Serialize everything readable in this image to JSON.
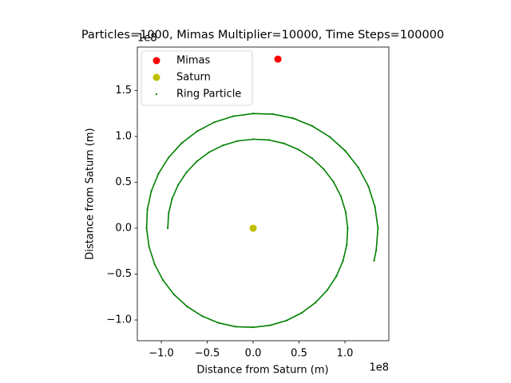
{
  "chart_data": {
    "type": "scatter",
    "title": "Particles=1000, Mimas Multiplier=10000, Time Steps=100000",
    "x_label": "Distance from Saturn (m)",
    "y_label": "Distance from Saturn (m)",
    "x_offset_label": "1e8",
    "y_offset_label": "1e8",
    "xlim": [
      -1.261,
      1.478
    ],
    "ylim": [
      -1.226,
      1.974
    ],
    "xticks": [
      {
        "value": -1.0,
        "label": "−1.0"
      },
      {
        "value": -0.5,
        "label": "−0.5"
      },
      {
        "value": 0.0,
        "label": "0.0"
      },
      {
        "value": 0.5,
        "label": "0.5"
      },
      {
        "value": 1.0,
        "label": "1.0"
      }
    ],
    "yticks": [
      {
        "value": -1.0,
        "label": "−1.0"
      },
      {
        "value": -0.5,
        "label": "−0.5"
      },
      {
        "value": 0.0,
        "label": "0.0"
      },
      {
        "value": 0.5,
        "label": "0.5"
      },
      {
        "value": 1.0,
        "label": "1.0"
      },
      {
        "value": 1.5,
        "label": "1.5"
      }
    ],
    "legend": "upper left",
    "series": [
      {
        "name": "Mimas",
        "color": "#ff0000",
        "marker": "large",
        "x": [
          0.27
        ],
        "values": [
          1.843
        ]
      },
      {
        "name": "Saturn",
        "color": "#bfbf00",
        "marker": "large",
        "x": [
          0
        ],
        "values": [
          0
        ]
      },
      {
        "name": "Ring Particle",
        "color": "#008000",
        "marker": "small",
        "x": [
          -0.93,
          -0.92,
          -0.883,
          -0.817,
          -0.726,
          -0.612,
          -0.478,
          -0.329,
          -0.168,
          0,
          0.17,
          0.336,
          0.495,
          0.641,
          0.768,
          0.875,
          0.956,
          1.008,
          1.03,
          1.02,
          0.979,
          0.907,
          0.806,
          0.68,
          0.532,
          0.366,
          0.187,
          0,
          -0.189,
          -0.376,
          -0.553,
          -0.717,
          -0.861,
          -0.981,
          -1.073,
          -1.134,
          -1.16,
          -1.152,
          -1.109,
          -1.031,
          -0.919,
          -0.778,
          -0.61,
          -0.421,
          -0.215,
          0,
          0.219,
          0.436,
          0.643,
          0.835,
          1.004,
          1.146,
          1.255,
          1.327,
          1.36,
          1.341,
          1.317
        ],
        "values": [
          0,
          0.162,
          0.321,
          0.472,
          0.609,
          0.729,
          0.829,
          0.903,
          0.951,
          0.97,
          0.962,
          0.924,
          0.857,
          0.764,
          0.645,
          0.505,
          0.348,
          0.178,
          0,
          -0.18,
          -0.356,
          -0.523,
          -0.676,
          -0.81,
          -0.921,
          -1.005,
          -1.058,
          -1.08,
          -1.073,
          -1.032,
          -0.959,
          -0.855,
          -0.723,
          -0.567,
          -0.391,
          -0.2,
          0,
          0.203,
          0.404,
          0.595,
          0.772,
          0.927,
          1.057,
          1.156,
          1.221,
          1.25,
          1.243,
          1.198,
          1.114,
          0.995,
          0.843,
          0.662,
          0.457,
          0.234,
          0,
          -0.237,
          -0.353
        ]
      }
    ]
  }
}
